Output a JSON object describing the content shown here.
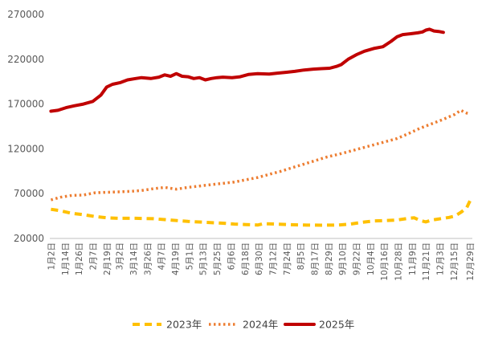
{
  "chart_data": {
    "type": "line",
    "title": "",
    "xlabel": "",
    "ylabel": "",
    "ylim": [
      20000,
      270000
    ],
    "y_ticks": [
      20000,
      70000,
      120000,
      170000,
      220000,
      270000
    ],
    "y_tick_labels": [
      "20000",
      "70000",
      "120000",
      "170000",
      "220000",
      "270000"
    ],
    "x_tick_labels": [
      "1月2日",
      "1月14日",
      "1月26日",
      "2月7日",
      "2月19日",
      "3月2日",
      "3月14日",
      "3月26日",
      "4月7日",
      "4月19日",
      "5月1日",
      "5月13日",
      "5月25日",
      "6月6日",
      "6月18日",
      "6月30日",
      "7月12日",
      "7月24日",
      "8月5日",
      "8月17日",
      "8月29日",
      "9月10日",
      "9月22日",
      "10月4日",
      "10月16日",
      "10月28日",
      "11月9日",
      "11月21日",
      "12月3日",
      "12月15日",
      "12月29日"
    ],
    "x_day_of_year": [
      2,
      14,
      26,
      38,
      50,
      61,
      73,
      85,
      97,
      109,
      121,
      133,
      145,
      157,
      169,
      181,
      193,
      205,
      217,
      229,
      241,
      253,
      265,
      277,
      289,
      301,
      313,
      325,
      337,
      349,
      363
    ],
    "grid": false,
    "legend_position": "bottom",
    "series": [
      {
        "name": "2023年",
        "color": "#FFC000",
        "style": "dash",
        "points": [
          [
            2,
            52500
          ],
          [
            10,
            51000
          ],
          [
            20,
            48000
          ],
          [
            30,
            46500
          ],
          [
            40,
            44500
          ],
          [
            50,
            43000
          ],
          [
            60,
            42500
          ],
          [
            75,
            42500
          ],
          [
            90,
            42000
          ],
          [
            105,
            40500
          ],
          [
            120,
            39000
          ],
          [
            135,
            38000
          ],
          [
            150,
            37000
          ],
          [
            160,
            36000
          ],
          [
            170,
            35500
          ],
          [
            180,
            35000
          ],
          [
            185,
            36500
          ],
          [
            195,
            36000
          ],
          [
            205,
            35500
          ],
          [
            220,
            35000
          ],
          [
            235,
            34800
          ],
          [
            250,
            35000
          ],
          [
            260,
            36000
          ],
          [
            270,
            38000
          ],
          [
            280,
            39500
          ],
          [
            290,
            40000
          ],
          [
            300,
            40500
          ],
          [
            310,
            42500
          ],
          [
            315,
            43000
          ],
          [
            320,
            40000
          ],
          [
            325,
            38500
          ],
          [
            330,
            40500
          ],
          [
            335,
            41500
          ],
          [
            340,
            42500
          ],
          [
            345,
            43500
          ],
          [
            350,
            45000
          ],
          [
            355,
            49000
          ],
          [
            360,
            54000
          ],
          [
            363,
            62000
          ]
        ]
      },
      {
        "name": "2024年",
        "color": "#ED7D31",
        "style": "dot",
        "points": [
          [
            2,
            63000
          ],
          [
            10,
            66000
          ],
          [
            20,
            68000
          ],
          [
            30,
            68500
          ],
          [
            40,
            71000
          ],
          [
            50,
            71500
          ],
          [
            60,
            72000
          ],
          [
            70,
            72500
          ],
          [
            80,
            73500
          ],
          [
            90,
            75500
          ],
          [
            100,
            77000
          ],
          [
            110,
            75000
          ],
          [
            120,
            77000
          ],
          [
            130,
            78500
          ],
          [
            140,
            80000
          ],
          [
            150,
            81500
          ],
          [
            160,
            83000
          ],
          [
            170,
            85500
          ],
          [
            180,
            88000
          ],
          [
            190,
            91500
          ],
          [
            200,
            95000
          ],
          [
            210,
            99000
          ],
          [
            220,
            103000
          ],
          [
            230,
            107000
          ],
          [
            240,
            111000
          ],
          [
            250,
            114000
          ],
          [
            260,
            117500
          ],
          [
            270,
            121000
          ],
          [
            280,
            124500
          ],
          [
            290,
            128000
          ],
          [
            300,
            131500
          ],
          [
            310,
            137000
          ],
          [
            320,
            143000
          ],
          [
            330,
            148000
          ],
          [
            340,
            153000
          ],
          [
            350,
            158500
          ],
          [
            355,
            163000
          ],
          [
            360,
            160000
          ],
          [
            363,
            159000
          ]
        ]
      },
      {
        "name": "2025年",
        "color": "#C00000",
        "style": "solid",
        "points": [
          [
            2,
            162000
          ],
          [
            8,
            163000
          ],
          [
            15,
            166000
          ],
          [
            22,
            168000
          ],
          [
            30,
            170000
          ],
          [
            38,
            173000
          ],
          [
            45,
            180000
          ],
          [
            50,
            189000
          ],
          [
            55,
            192000
          ],
          [
            62,
            194000
          ],
          [
            68,
            197000
          ],
          [
            75,
            198500
          ],
          [
            80,
            199500
          ],
          [
            88,
            198500
          ],
          [
            95,
            200000
          ],
          [
            100,
            202500
          ],
          [
            105,
            201000
          ],
          [
            110,
            204000
          ],
          [
            115,
            201000
          ],
          [
            120,
            200500
          ],
          [
            125,
            198500
          ],
          [
            130,
            199500
          ],
          [
            135,
            197000
          ],
          [
            140,
            198500
          ],
          [
            145,
            199500
          ],
          [
            150,
            200000
          ],
          [
            158,
            199500
          ],
          [
            165,
            200500
          ],
          [
            172,
            203000
          ],
          [
            180,
            204000
          ],
          [
            190,
            203500
          ],
          [
            197,
            204500
          ],
          [
            205,
            205500
          ],
          [
            212,
            206500
          ],
          [
            220,
            208000
          ],
          [
            228,
            209000
          ],
          [
            235,
            209500
          ],
          [
            242,
            210000
          ],
          [
            248,
            212000
          ],
          [
            252,
            214000
          ],
          [
            258,
            220000
          ],
          [
            265,
            225000
          ],
          [
            272,
            229000
          ],
          [
            280,
            232000
          ],
          [
            288,
            234000
          ],
          [
            295,
            240000
          ],
          [
            300,
            245000
          ],
          [
            305,
            247500
          ],
          [
            312,
            248500
          ],
          [
            318,
            249500
          ],
          [
            322,
            250500
          ],
          [
            325,
            252500
          ],
          [
            328,
            253500
          ],
          [
            332,
            251500
          ],
          [
            336,
            251000
          ],
          [
            340,
            250000
          ]
        ]
      }
    ]
  }
}
